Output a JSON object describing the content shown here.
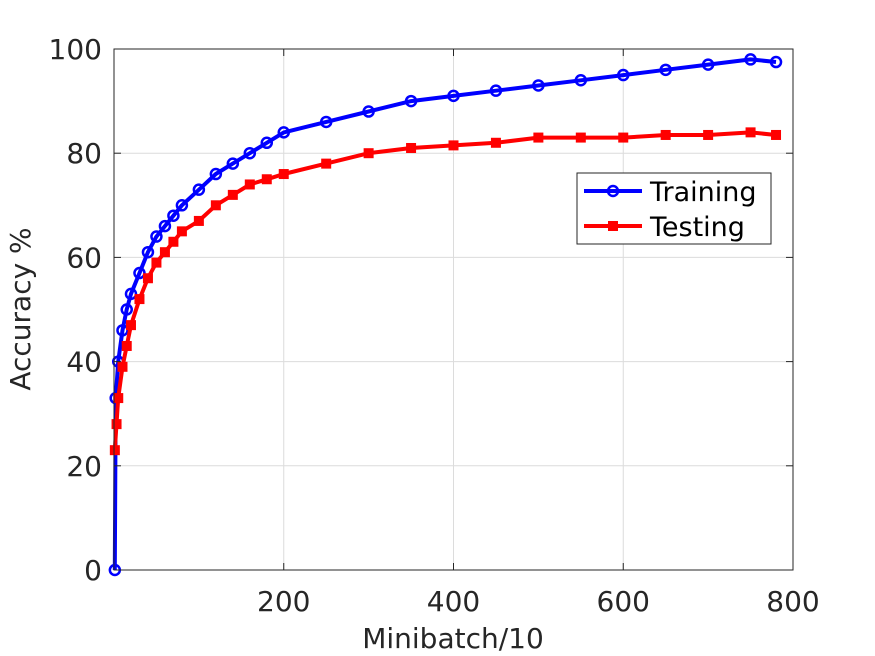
{
  "chart_data": {
    "type": "line",
    "title": "",
    "xlabel": "Minibatch/10",
    "ylabel": "Accuracy %",
    "xlim": [
      0,
      800
    ],
    "ylim": [
      0,
      100
    ],
    "xticks": [
      200,
      400,
      600,
      800
    ],
    "yticks": [
      0,
      20,
      40,
      60,
      80,
      100
    ],
    "grid": true,
    "legend_position": "upper-right",
    "series": [
      {
        "name": "Training",
        "color": "#0000ff",
        "marker": "circle",
        "x": [
          1,
          2,
          5,
          10,
          15,
          20,
          30,
          40,
          50,
          60,
          70,
          80,
          100,
          120,
          140,
          160,
          180,
          200,
          250,
          300,
          350,
          400,
          450,
          500,
          550,
          600,
          650,
          700,
          750,
          780
        ],
        "y": [
          0,
          33,
          40,
          46,
          50,
          53,
          57,
          61,
          64,
          66,
          68,
          70,
          73,
          76,
          78,
          80,
          82,
          84,
          86,
          88,
          90,
          91,
          92,
          93,
          94,
          95,
          96,
          97,
          98,
          97.5
        ]
      },
      {
        "name": "Testing",
        "color": "#ff0000",
        "marker": "square",
        "x": [
          1,
          3,
          5,
          10,
          15,
          20,
          30,
          40,
          50,
          60,
          70,
          80,
          100,
          120,
          140,
          160,
          180,
          200,
          250,
          300,
          350,
          400,
          450,
          500,
          550,
          600,
          650,
          700,
          750,
          780
        ],
        "y": [
          23,
          28,
          33,
          39,
          43,
          47,
          52,
          56,
          59,
          61,
          63,
          65,
          67,
          70,
          72,
          74,
          75,
          76,
          78,
          80,
          81,
          81.5,
          82,
          83,
          83,
          83,
          83.5,
          83.5,
          84,
          83.5
        ]
      }
    ]
  }
}
